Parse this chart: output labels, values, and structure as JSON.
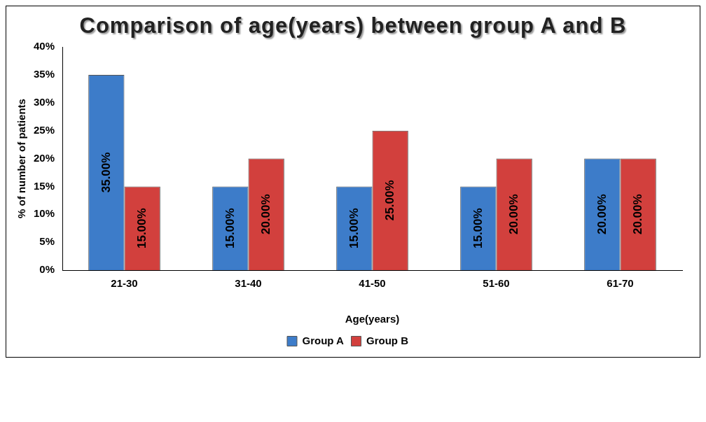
{
  "chart_data": {
    "type": "bar",
    "title": "Comparison of age(years) between group A and B",
    "xlabel": "Age(years)",
    "ylabel": "% of number of patients",
    "categories": [
      "21-30",
      "31-40",
      "41-50",
      "51-60",
      "61-70"
    ],
    "series": [
      {
        "name": "Group A",
        "color": "#3d7cc9",
        "values": [
          35,
          15,
          15,
          15,
          20
        ],
        "value_labels": [
          "35.00%",
          "15.00%",
          "15.00%",
          "15.00%",
          "20.00%"
        ]
      },
      {
        "name": "Group B",
        "color": "#d2403d",
        "values": [
          15,
          20,
          25,
          20,
          20
        ],
        "value_labels": [
          "15.00%",
          "20.00%",
          "25.00%",
          "20.00%",
          "20.00%"
        ]
      }
    ],
    "ylim": [
      0,
      40
    ],
    "yticks": [
      {
        "value": 0,
        "label": "0%"
      },
      {
        "value": 5,
        "label": "5%"
      },
      {
        "value": 10,
        "label": "10%"
      },
      {
        "value": 15,
        "label": "15%"
      },
      {
        "value": 20,
        "label": "20%"
      },
      {
        "value": 25,
        "label": "25%"
      },
      {
        "value": 30,
        "label": "30%"
      },
      {
        "value": 35,
        "label": "35%"
      },
      {
        "value": 40,
        "label": "40%"
      }
    ],
    "grid": false,
    "legend": "bottom"
  }
}
